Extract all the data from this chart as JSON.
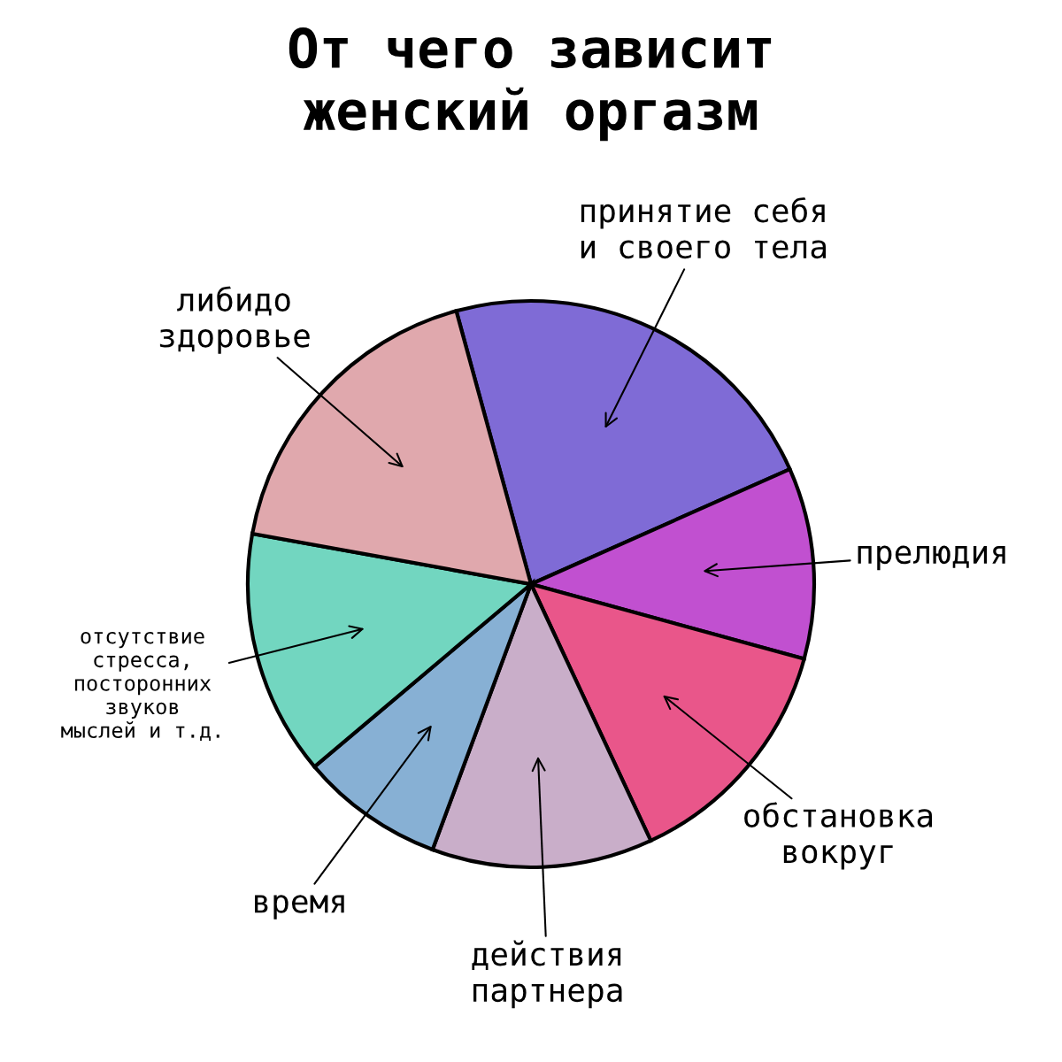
{
  "chart_data": {
    "type": "pie",
    "title": "От чего зависит\nженский оргазм",
    "categories": [
      "принятие себя\nи своего тела",
      "прелюдия",
      "обстановка\nвокруг",
      "действия\nпартнера",
      "время",
      "отсутствие\nстресса,\nпосторонних\nзвуков\nмыслей и т.д.",
      "либидо\nздоровье"
    ],
    "values": [
      22.6,
      10.9,
      13.8,
      12.6,
      8.2,
      14.0,
      17.9
    ],
    "colors": [
      "#7f6bd6",
      "#c150d0",
      "#e9568a",
      "#c9aec9",
      "#87b0d4",
      "#72d6c0",
      "#e0a8ad"
    ]
  }
}
